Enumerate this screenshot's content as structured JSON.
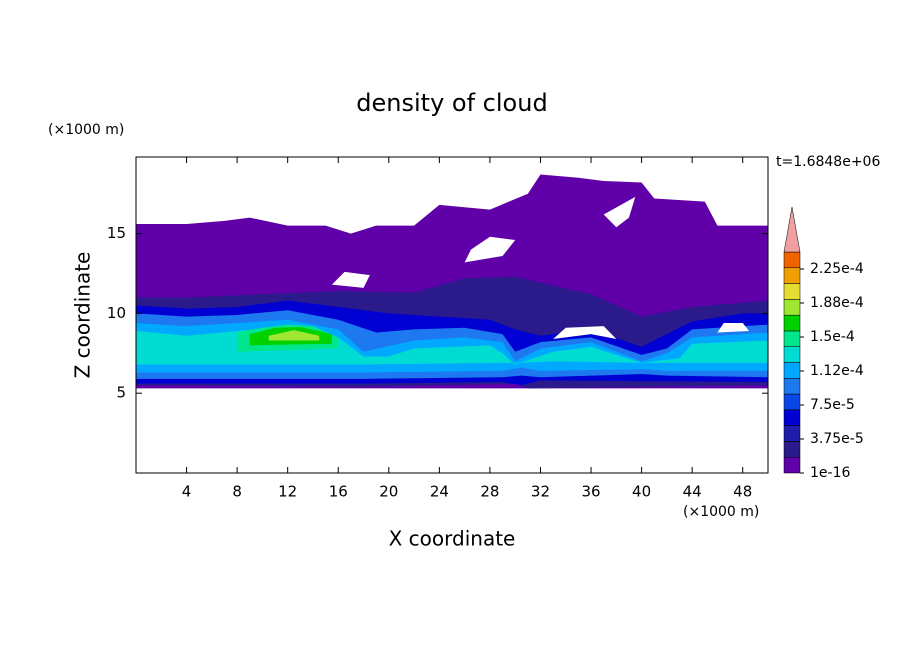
{
  "chart_data": {
    "type": "contour",
    "title": "density of cloud",
    "x_label": "X coordinate",
    "y_label": "Z coordinate",
    "x_unit": "(×1000 m)",
    "y_unit": "(×1000 m)",
    "time_label": "t=1.6848e+06",
    "xlim": [
      0,
      50
    ],
    "xticks": [
      4,
      8,
      12,
      16,
      20,
      24,
      28,
      32,
      36,
      40,
      44,
      48
    ],
    "ylim": [
      0,
      19.8
    ],
    "yticks": [
      5,
      10,
      15
    ],
    "colorbar": {
      "lim": [
        1e-16,
        0.00024375
      ],
      "ticks": [
        {
          "value": 1e-16,
          "label": "1e-16"
        },
        {
          "value": 3.75e-05,
          "label": "3.75e-5"
        },
        {
          "value": 7.5e-05,
          "label": "7.5e-5"
        },
        {
          "value": 0.0001125,
          "label": "1.12e-4"
        },
        {
          "value": 0.00015,
          "label": "1.5e-4"
        },
        {
          "value": 0.0001875,
          "label": "1.88e-4"
        },
        {
          "value": 0.000225,
          "label": "2.25e-4"
        }
      ],
      "colors": [
        "#5f00a8",
        "#2a1a8c",
        "#1e1eaa",
        "#0000d2",
        "#0a46e6",
        "#1e78f0",
        "#00a8ff",
        "#00dcd2",
        "#00e68c",
        "#00d200",
        "#a0e632",
        "#e6dc32",
        "#f0a000",
        "#f06400",
        "#f0a0a0"
      ]
    }
  }
}
